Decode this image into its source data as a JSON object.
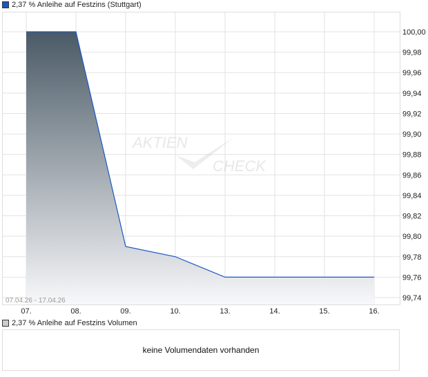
{
  "chart_data": {
    "type": "area",
    "title": "2,37 % Anleihe auf Festzins (Stuttgart)",
    "categories": [
      "07.",
      "08.",
      "09.",
      "10.",
      "13.",
      "14.",
      "15.",
      "16."
    ],
    "values": [
      100.0,
      100.0,
      99.79,
      99.78,
      99.76,
      99.76,
      99.76,
      99.76
    ],
    "ylim": [
      99.74,
      100.0
    ],
    "yticks": [
      "100,00",
      "99,98",
      "99,96",
      "99,94",
      "99,92",
      "99,90",
      "99,88",
      "99,86",
      "99,84",
      "99,82",
      "99,80",
      "99,78",
      "99,76",
      "99,74"
    ],
    "date_range": "07.04.26 - 17.04.26",
    "grid": true,
    "line_color": "#1a56c4",
    "fill_colors": [
      "#4a5a66",
      "#f8f8fa"
    ]
  },
  "watermark": "AKTIEN CHECK",
  "volume": {
    "title": "2,37 % Anleihe auf Festzins Volumen",
    "empty_text": "keine Volumendaten vorhanden"
  }
}
